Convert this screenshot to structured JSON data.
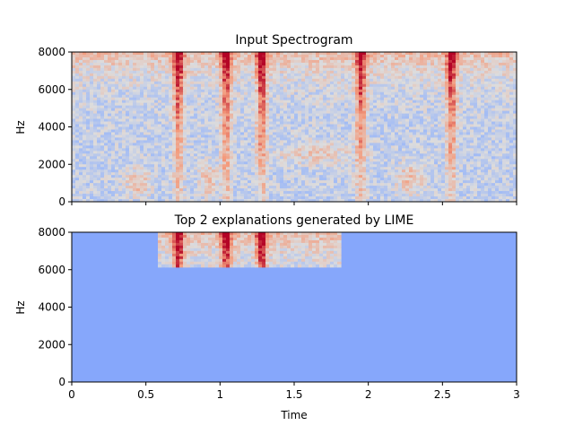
{
  "chart_data": [
    {
      "type": "heatmap",
      "title": "Input Spectrogram",
      "ylabel": "Hz",
      "xlabel": "",
      "xlim": [
        0,
        3
      ],
      "ylim": [
        0,
        8000
      ],
      "yticks": [
        "0",
        "2000",
        "4000",
        "6000",
        "8000"
      ],
      "ytick_values": [
        0,
        2000,
        4000,
        6000,
        8000
      ],
      "colormap": [
        "#3b4cc0",
        "#8db0fe",
        "#dddcdc",
        "#f49a7b",
        "#b40426"
      ],
      "energy_bursts_time": [
        0.72,
        1.04,
        1.28,
        1.95,
        2.56
      ]
    },
    {
      "type": "heatmap",
      "title": "Top 2 explanations generated by LIME",
      "ylabel": "Hz",
      "xlabel": "Time",
      "xlim": [
        0,
        3
      ],
      "ylim": [
        0,
        8000
      ],
      "xticks": [
        "0",
        "0.5",
        "1",
        "1.5",
        "2",
        "2.5",
        "3"
      ],
      "xtick_values": [
        0,
        0.5,
        1,
        1.5,
        2,
        2.5,
        3
      ],
      "yticks": [
        "0",
        "2000",
        "4000",
        "6000",
        "8000"
      ],
      "ytick_values": [
        0,
        2000,
        4000,
        6000,
        8000
      ],
      "mask_color": "#86a7fb",
      "explanation_region": {
        "t_start": 0.6,
        "t_end": 1.8,
        "f_min": 6250,
        "f_max": 8000
      }
    }
  ]
}
